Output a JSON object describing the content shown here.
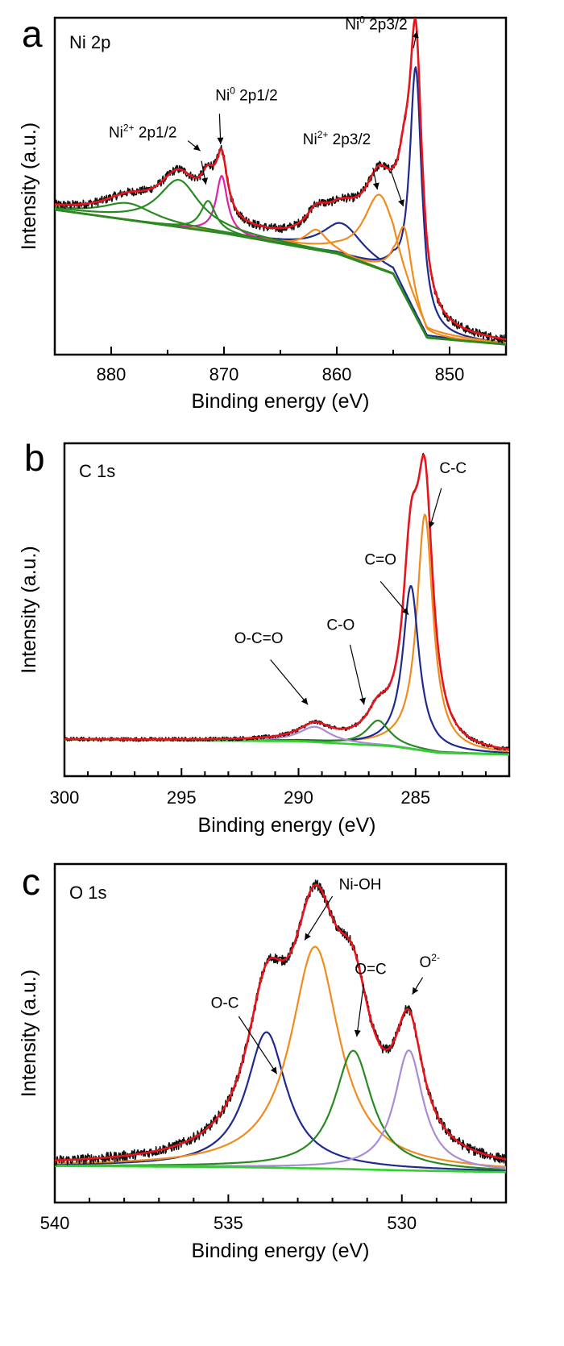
{
  "chart_data": [
    {
      "type": "line",
      "panel_letter": "a",
      "panel_label": "Ni 2p",
      "xlabel": "Binding energy (eV)",
      "ylabel": "Intensity (a.u.)",
      "xlim": [
        885,
        845
      ],
      "ylim": [
        0,
        1
      ],
      "x_ticks": [
        880,
        870,
        860,
        850
      ],
      "x_tick_labels": [
        "880",
        "870",
        "860",
        "850"
      ],
      "minor_step": 5,
      "background": {
        "points": [
          [
            885,
            0.43
          ],
          [
            870,
            0.36
          ],
          [
            860,
            0.3
          ],
          [
            855,
            0.24
          ],
          [
            852,
            0.05
          ],
          [
            845,
            0.03
          ]
        ]
      },
      "measured": {
        "noise": 0.013
      },
      "peaks": [
        {
          "center": 853.0,
          "height": 0.74,
          "width": 0.65,
          "color": "#1f2a8c"
        },
        {
          "center": 859.5,
          "height": 0.095,
          "width": 2.2,
          "color": "#1f2a8c"
        },
        {
          "center": 854.0,
          "height": 0.2,
          "width": 0.8,
          "color": "#f08c1e"
        },
        {
          "center": 856.2,
          "height": 0.22,
          "width": 1.7,
          "color": "#f08c1e"
        },
        {
          "center": 861.8,
          "height": 0.06,
          "width": 1.2,
          "color": "#f08c1e"
        },
        {
          "center": 870.2,
          "height": 0.17,
          "width": 0.6,
          "color": "#e020a8"
        },
        {
          "center": 871.4,
          "height": 0.09,
          "width": 0.8,
          "color": "#2a8a22"
        },
        {
          "center": 874.0,
          "height": 0.14,
          "width": 2.2,
          "color": "#2a8a22"
        },
        {
          "center": 878.5,
          "height": 0.05,
          "width": 2.8,
          "color": "#2a8a22"
        }
      ],
      "colors": {
        "envelope": "#e8141c",
        "measured": "#111111",
        "background": "#2a8a22"
      },
      "annotations": [
        {
          "main": "Ni",
          "sup": "0",
          "tail": " 2p3/2",
          "x": 856.5,
          "y": 0.965,
          "anchor": "middle",
          "arrows": [
            [
              853.2,
              0.91,
              852.9,
              0.96
            ]
          ]
        },
        {
          "main": "Ni",
          "sup": "2+",
          "tail": " 2p3/2",
          "x": 860.0,
          "y": 0.625,
          "anchor": "middle",
          "arrows": [
            [
              856.8,
              0.555,
              856.4,
              0.49
            ],
            [
              855.2,
              0.545,
              854.1,
              0.44
            ]
          ]
        },
        {
          "main": "Ni",
          "sup": "0",
          "tail": " 2p1/2",
          "x": 868.0,
          "y": 0.755,
          "anchor": "middle",
          "arrows": [
            [
              870.4,
              0.715,
              870.3,
              0.625
            ]
          ]
        },
        {
          "main": "Ni",
          "sup": "2+",
          "tail": " 2p1/2",
          "x": 877.2,
          "y": 0.645,
          "anchor": "middle",
          "arrows": [
            [
              873.2,
              0.635,
              872.1,
              0.605
            ],
            [
              872.0,
              0.575,
              871.6,
              0.505
            ]
          ]
        }
      ]
    },
    {
      "type": "line",
      "panel_letter": "b",
      "panel_label": "C 1s",
      "xlabel": "Binding energy (eV)",
      "ylabel": "Intensity (a.u.)",
      "xlim": [
        300,
        281
      ],
      "ylim": [
        0,
        1
      ],
      "x_ticks": [
        300,
        295,
        290,
        285
      ],
      "x_tick_labels": [
        "300",
        "295",
        "290",
        "285"
      ],
      "minor_step": 1,
      "background": {
        "points": [
          [
            300,
            0.11
          ],
          [
            290,
            0.105
          ],
          [
            286,
            0.09
          ],
          [
            284,
            0.07
          ],
          [
            281,
            0.065
          ]
        ]
      },
      "measured": {
        "noise": 0.006
      },
      "peaks": [
        {
          "center": 284.6,
          "height": 0.71,
          "width": 0.42,
          "color": "#f08c1e"
        },
        {
          "center": 285.2,
          "height": 0.49,
          "width": 0.42,
          "color": "#1f2a8c"
        },
        {
          "center": 286.6,
          "height": 0.075,
          "width": 0.6,
          "color": "#2a8a22"
        },
        {
          "center": 289.3,
          "height": 0.046,
          "width": 0.8,
          "color": "#a98bd6"
        }
      ],
      "colors": {
        "envelope": "#e8141c",
        "measured": "#111111",
        "background": "#2fd12a"
      },
      "annotations": [
        {
          "main": "C-C",
          "x": 283.4,
          "y": 0.91,
          "anchor": "middle",
          "arrows": [
            [
              283.9,
              0.865,
              284.4,
              0.745
            ]
          ]
        },
        {
          "main": "C=O",
          "x": 286.5,
          "y": 0.635,
          "anchor": "middle",
          "arrows": [
            [
              286.5,
              0.585,
              285.3,
              0.485
            ]
          ]
        },
        {
          "main": "C-O",
          "x": 288.2,
          "y": 0.44,
          "anchor": "middle",
          "arrows": [
            [
              287.8,
              0.395,
              287.2,
              0.215
            ]
          ]
        },
        {
          "main": "O-C=O",
          "x": 291.7,
          "y": 0.4,
          "anchor": "middle",
          "arrows": [
            [
              291.2,
              0.35,
              289.6,
              0.215
            ]
          ]
        }
      ]
    },
    {
      "type": "line",
      "panel_letter": "c",
      "panel_label": "O 1s",
      "xlabel": "Binding energy (eV)",
      "ylabel": "Intensity (a.u.)",
      "xlim": [
        540,
        527
      ],
      "ylim": [
        0,
        1
      ],
      "x_ticks": [
        540,
        535,
        530
      ],
      "x_tick_labels": [
        "540",
        "535",
        "530"
      ],
      "minor_step": 1,
      "background": {
        "points": [
          [
            540,
            0.108
          ],
          [
            535,
            0.105
          ],
          [
            532,
            0.1
          ],
          [
            530,
            0.095
          ],
          [
            527,
            0.09
          ]
        ]
      },
      "measured": {
        "noise": 0.015
      },
      "peaks": [
        {
          "center": 533.9,
          "height": 0.4,
          "width": 0.7,
          "color": "#1f2a8c"
        },
        {
          "center": 532.5,
          "height": 0.655,
          "width": 0.85,
          "color": "#f08c1e"
        },
        {
          "center": 531.4,
          "height": 0.35,
          "width": 0.65,
          "color": "#2a8a22"
        },
        {
          "center": 529.8,
          "height": 0.355,
          "width": 0.5,
          "color": "#a98bd6"
        }
      ],
      "colors": {
        "envelope": "#e8141c",
        "measured": "#111111",
        "background": "#2fd12a"
      },
      "annotations": [
        {
          "main": "Ni-OH",
          "x": 531.2,
          "y": 0.925,
          "anchor": "middle",
          "arrows": [
            [
              532.0,
              0.905,
              532.8,
              0.775
            ]
          ]
        },
        {
          "main": "O=C",
          "x": 530.9,
          "y": 0.675,
          "anchor": "middle",
          "arrows": [
            [
              531.1,
              0.645,
              531.3,
              0.49
            ]
          ]
        },
        {
          "main": "O",
          "sup": "2-",
          "x": 529.2,
          "y": 0.695,
          "anchor": "middle",
          "arrows": [
            [
              529.4,
              0.665,
              529.7,
              0.615
            ]
          ]
        },
        {
          "main": "O-C",
          "x": 535.1,
          "y": 0.575,
          "anchor": "middle",
          "arrows": [
            [
              534.7,
              0.55,
              533.6,
              0.38
            ]
          ]
        }
      ]
    }
  ]
}
